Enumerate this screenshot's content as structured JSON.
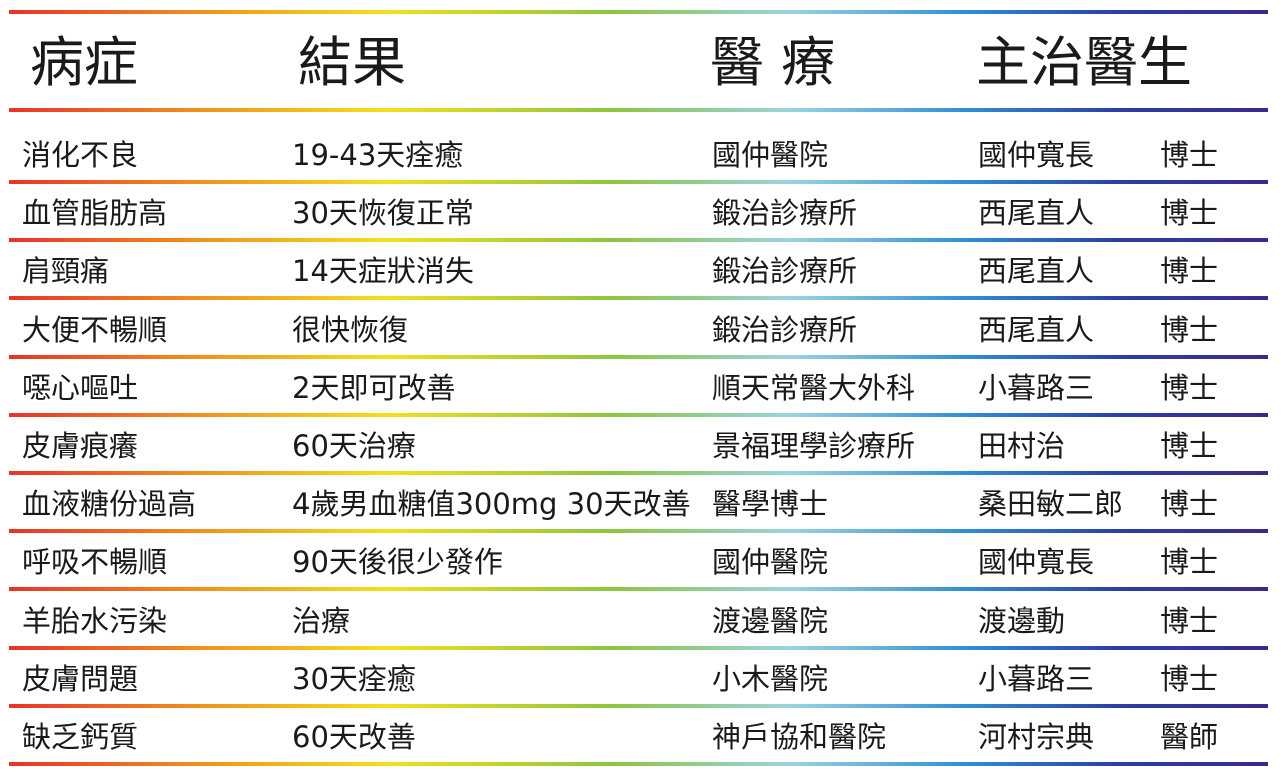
{
  "headers": [
    "病症",
    "結果",
    "醫 療",
    "主治醫生"
  ],
  "rows": [
    {
      "condition": "消化不良",
      "result": "19-43天痊癒",
      "clinic": "國仲醫院",
      "doctor": "國仲寬長",
      "title": "博士"
    },
    {
      "condition": "血管脂肪高",
      "result": "30天恢復正常",
      "clinic": "鍛治診療所",
      "doctor": "西尾直人",
      "title": "博士"
    },
    {
      "condition": "肩頸痛",
      "result": "14天症狀消失",
      "clinic": "鍛治診療所",
      "doctor": "西尾直人",
      "title": "博士"
    },
    {
      "condition": "大便不暢順",
      "result": "很快恢復",
      "clinic": "鍛治診療所",
      "doctor": "西尾直人",
      "title": "博士"
    },
    {
      "condition": "噁心嘔吐",
      "result": "2天即可改善",
      "clinic": "順天常醫大外科",
      "doctor": "小暮路三",
      "title": "博士"
    },
    {
      "condition": "皮膚痕癢",
      "result": "60天治療",
      "clinic": "景福理學診療所",
      "doctor": "田村治",
      "title": "博士"
    },
    {
      "condition": "血液糖份過高",
      "result": "4歲男血糖值300mg 30天改善",
      "clinic": "醫學博士",
      "doctor": "桑田敏二郎",
      "title": "博士"
    },
    {
      "condition": "呼吸不暢順",
      "result": "90天後很少發作",
      "clinic": "國仲醫院",
      "doctor": "國仲寬長",
      "title": "博士"
    },
    {
      "condition": "羊胎水污染",
      "result": "治療",
      "clinic": "渡邊醫院",
      "doctor": "渡邊動",
      "title": "博士"
    },
    {
      "condition": "皮膚問題",
      "result": "30天痊癒",
      "clinic": "小木醫院",
      "doctor": "小暮路三",
      "title": "博士"
    },
    {
      "condition": "缺乏鈣質",
      "result": "60天改善",
      "clinic": "神戶協和醫院",
      "doctor": "河村宗典",
      "title": "醫師"
    }
  ]
}
